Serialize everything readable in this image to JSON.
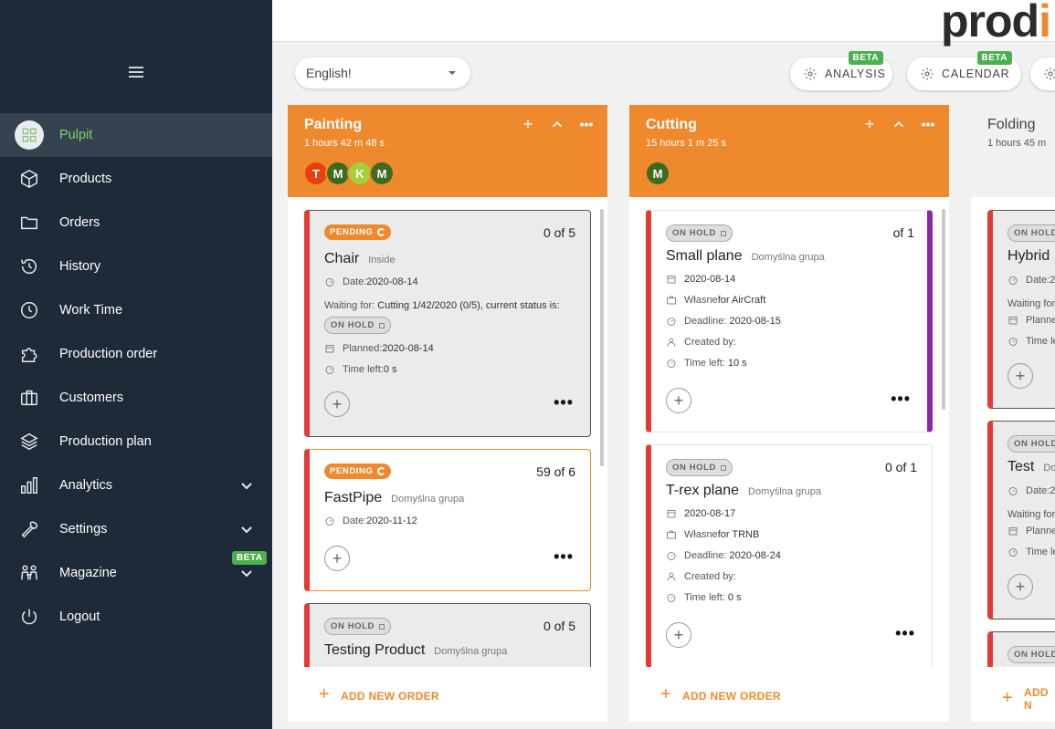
{
  "sidebar": {
    "items": [
      {
        "label": "Pulpit",
        "icon": "dashboard-grid-icon",
        "active": true
      },
      {
        "label": "Products",
        "icon": "cube-icon"
      },
      {
        "label": "Orders",
        "icon": "folder-icon"
      },
      {
        "label": "History",
        "icon": "history-icon"
      },
      {
        "label": "Work Time",
        "icon": "clock-icon"
      },
      {
        "label": "Production order",
        "icon": "puzzle-icon"
      },
      {
        "label": "Customers",
        "icon": "briefcase-icon"
      },
      {
        "label": "Production plan",
        "icon": "layers-icon"
      },
      {
        "label": "Analytics",
        "icon": "bar-chart-icon",
        "expandable": true
      },
      {
        "label": "Settings",
        "icon": "wrench-icon",
        "expandable": true
      },
      {
        "label": "Magazine",
        "icon": "people-icon",
        "expandable": true,
        "badge": "BETA"
      },
      {
        "label": "Logout",
        "icon": "power-icon"
      }
    ]
  },
  "header": {
    "logo_text": "prod",
    "logo_accent": "i"
  },
  "toolbar": {
    "language": "English!",
    "analysis_label": "ANALYSIS",
    "analysis_badge": "BETA",
    "calendar_label": "CALENDAR",
    "calendar_badge": "BETA"
  },
  "colors": {
    "accent": "#ee8a2d",
    "sidebar_bg": "#1f2a38",
    "active_green": "#7cd46a",
    "beta_green": "#4caf50",
    "card_red": "#e53935",
    "card_purple": "#8e24aa"
  },
  "columns": [
    {
      "title": "Painting",
      "time": "1 hours 42 m 48 s",
      "avatars": [
        {
          "letter": "T",
          "color": "#e8400c"
        },
        {
          "letter": "M",
          "color": "#3d6b1f"
        },
        {
          "letter": "K",
          "color": "#a8cf3a"
        },
        {
          "letter": "M",
          "color": "#3d6b1f"
        }
      ],
      "add_label": "ADD NEW ORDER",
      "cards": [
        {
          "status": "PENDING",
          "count": "0 of 5",
          "name": "Chair",
          "sub": "Inside",
          "date_label": "Date:",
          "date": "2020-08-14",
          "waiting_label": "Waiting for:",
          "waiting": "Cutting 1/42/2020 (0/5), current status is:",
          "waiting_status": "ON HOLD",
          "planned_label": "Planned:",
          "planned": "2020-08-14",
          "timeleft_label": "Time left:",
          "timeleft": "0 s"
        },
        {
          "status": "PENDING",
          "count": "59 of 6",
          "name": "FastPipe",
          "sub": "Domyślna grupa",
          "date_label": "Date:",
          "date": "2020-11-12"
        },
        {
          "status": "ON HOLD",
          "count": "0 of 5",
          "name": "Testing Product",
          "sub": "Domyślna grupa"
        }
      ]
    },
    {
      "title": "Cutting",
      "time": "15 hours 1 m 25 s",
      "avatars": [
        {
          "letter": "M",
          "color": "#3d6b1f"
        }
      ],
      "add_label": "ADD NEW ORDER",
      "cards": [
        {
          "status": "ON HOLD",
          "count": "of 1",
          "name": "Small plane",
          "sub": "Domyślna grupa",
          "date": "2020-08-14",
          "owner": "Własne",
          "owner_for": "for AirCraft",
          "deadline_label": "Deadline:",
          "deadline": "2020-08-15",
          "created_label": "Created by:",
          "timeleft_label": "Time left:",
          "timeleft": "10 s"
        },
        {
          "status": "ON HOLD",
          "count": "0 of 1",
          "name": "T-rex plane",
          "sub": "Domyślna grupa",
          "date": "2020-08-17",
          "owner": "Własne",
          "owner_for": "for TRNB",
          "deadline_label": "Deadline:",
          "deadline": "2020-08-24",
          "created_label": "Created by:",
          "timeleft_label": "Time left:",
          "timeleft": "0 s"
        }
      ]
    },
    {
      "title": "Folding",
      "time": "1 hours 45 m",
      "add_label": "ADD N",
      "cards": [
        {
          "status": "ON HOLD",
          "name": "Hybrid",
          "date_label": "Date:2",
          "waiting_label": "Waiting for",
          "planned_label": "Planne",
          "timeleft_label": "Time le"
        },
        {
          "status": "ON HOLD",
          "name": "Test",
          "sub": "Do",
          "date_label": "Date:2",
          "waiting_label": "Waiting for",
          "planned_label": "Planne",
          "timeleft_label": "Time le"
        },
        {
          "status": "ON HOLD"
        }
      ]
    }
  ]
}
